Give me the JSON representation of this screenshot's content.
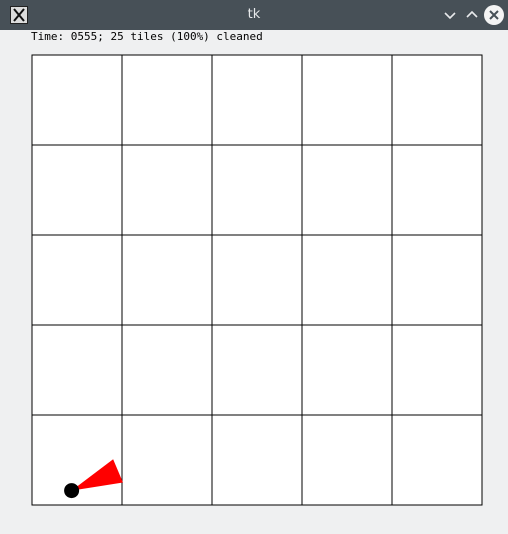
{
  "window": {
    "title": "tk"
  },
  "titlebar_icons": {
    "app": "x-app-icon",
    "minimize": "chevron-down-icon",
    "maximize": "chevron-up-icon",
    "close": "close-icon"
  },
  "status": {
    "text": "Time: 0555; 25 tiles (100%) cleaned",
    "time": "0555",
    "tiles": 25,
    "percent_cleaned": 100
  },
  "room": {
    "columns": 5,
    "rows": 5,
    "all_tiles_clean": true
  },
  "robot": {
    "tile_col": 0,
    "tile_row": 4,
    "pos_in_tile": [
      0.44,
      0.84
    ],
    "heading_deg": -23
  },
  "colors": {
    "titlebar": "#475057",
    "window_bg": "#eff0f1",
    "tile_clean": "#ffffff",
    "grid_line": "#000000",
    "robot_body": "#000000",
    "robot_direction": "#ff0000"
  }
}
